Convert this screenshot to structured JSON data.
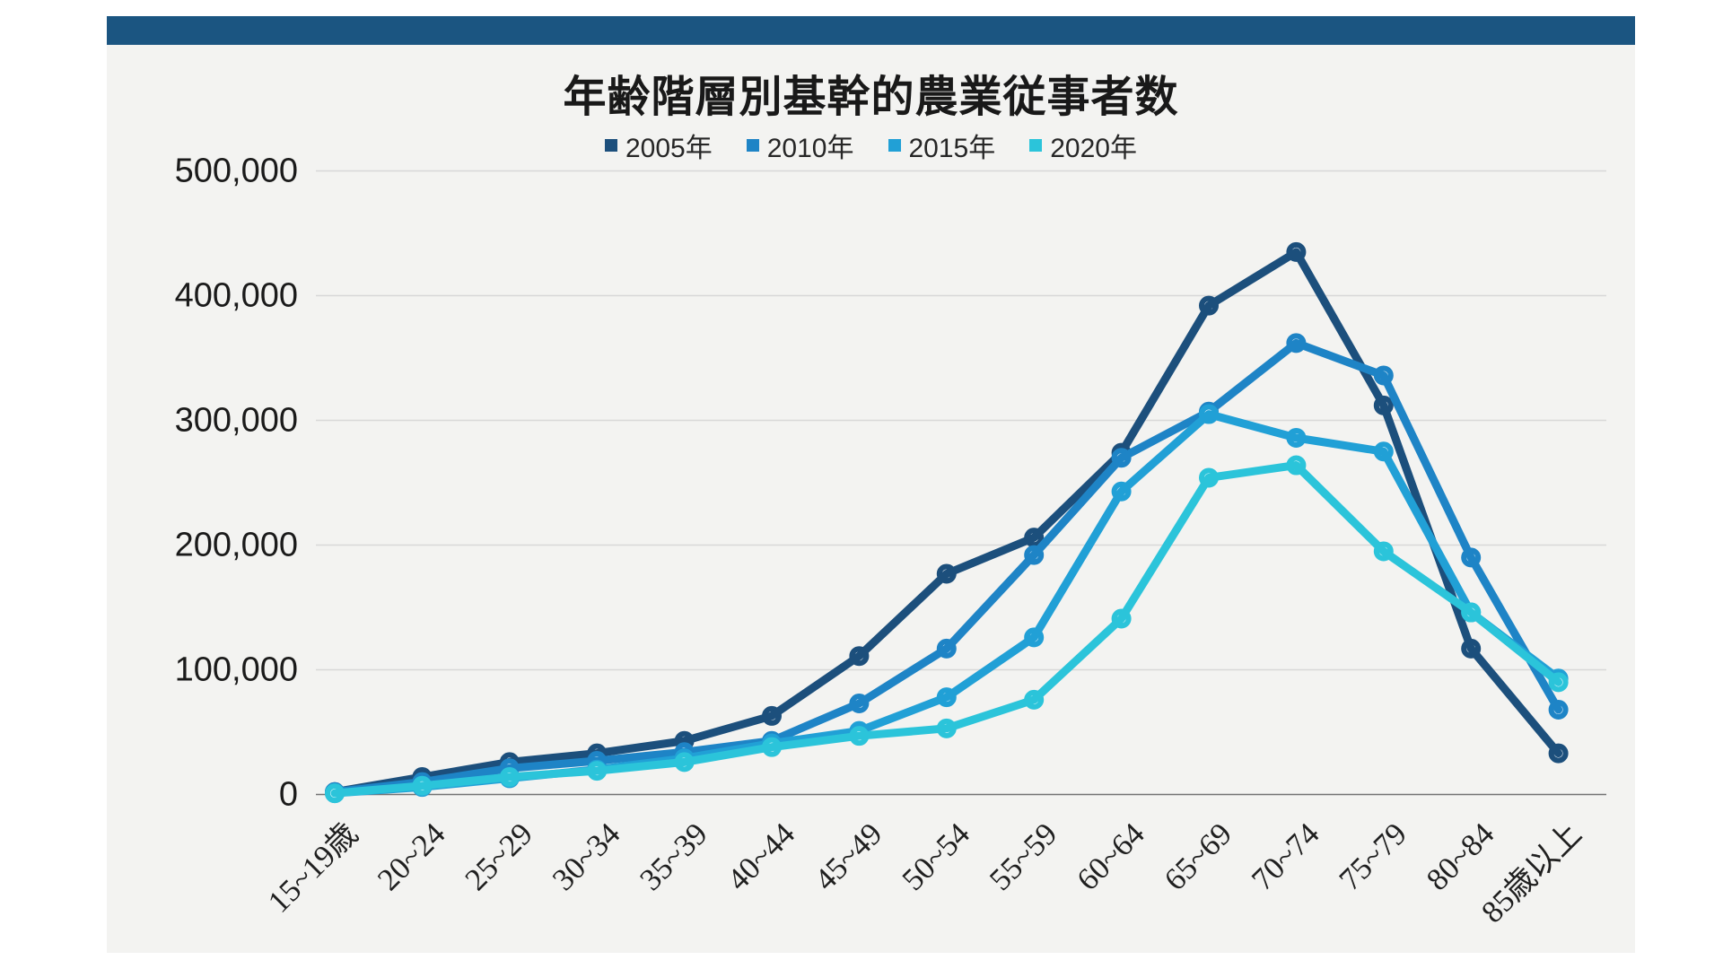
{
  "page": {
    "title": "年齢階層別基幹的農業従事者数"
  },
  "colors": {
    "topbar": "#1b5581",
    "panel_bg": "#f3f3f1",
    "gridline": "#d8d8d8",
    "zero_line": "#737373",
    "text": "#1a1a1a",
    "marker_fill": "#ffffff"
  },
  "chart_data": {
    "type": "line",
    "title": "年齢階層別基幹的農業従事者数",
    "xlabel": "",
    "ylabel": "",
    "ylim": [
      0,
      500000
    ],
    "grid": true,
    "legend_position": "top",
    "y_ticks": [
      0,
      100000,
      200000,
      300000,
      400000,
      500000
    ],
    "y_tick_labels": [
      "0",
      "100,000",
      "200,000",
      "300,000",
      "400,000",
      "500,000"
    ],
    "categories": [
      "15~19歳",
      "20~24",
      "25~29",
      "30~34",
      "35~39",
      "40~44",
      "45~49",
      "50~54",
      "55~59",
      "60~64",
      "65~69",
      "70~74",
      "75~79",
      "80~84",
      "85歳以上"
    ],
    "series": [
      {
        "label": "2005年",
        "color": "#1c4f7c",
        "values": [
          2000,
          14000,
          26000,
          33000,
          43000,
          63000,
          111000,
          177000,
          206000,
          274000,
          392000,
          435000,
          312000,
          117000,
          33000
        ]
      },
      {
        "label": "2010年",
        "color": "#1e84c6",
        "values": [
          2000,
          10000,
          21000,
          27000,
          34000,
          43000,
          73000,
          117000,
          192000,
          270000,
          307000,
          362000,
          336000,
          190000,
          68000
        ]
      },
      {
        "label": "2015年",
        "color": "#21a0d6",
        "values": [
          1000,
          6000,
          13000,
          20000,
          29000,
          41000,
          51000,
          78000,
          126000,
          243000,
          305000,
          286000,
          275000,
          146000,
          93000
        ]
      },
      {
        "label": "2020年",
        "color": "#2bc4da",
        "values": [
          1000,
          7000,
          14000,
          19000,
          26000,
          38000,
          47000,
          53000,
          76000,
          141000,
          254000,
          264000,
          195000,
          146000,
          90000
        ]
      }
    ]
  }
}
